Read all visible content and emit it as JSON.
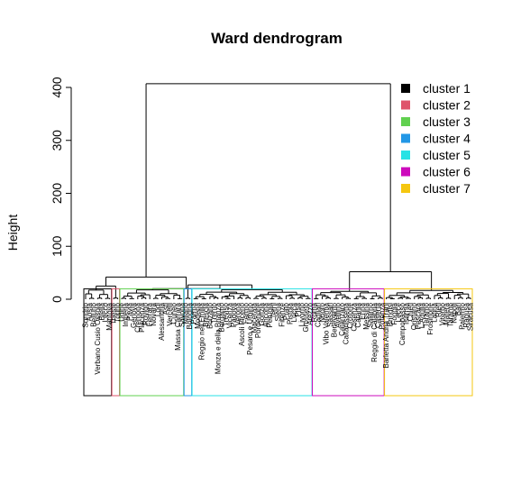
{
  "chart_data": {
    "type": "dendrogram",
    "title": "Ward dendrogram",
    "xlabel": "",
    "ylabel": "Height",
    "ylim": [
      0,
      420
    ],
    "yticks": [
      0,
      100,
      200,
      300,
      400
    ],
    "merges": [
      {
        "name": "root",
        "height": 407
      },
      {
        "name": "left-group",
        "height": 42
      },
      {
        "name": "right-group",
        "height": 52
      },
      {
        "name": "left-a",
        "height": 25
      },
      {
        "name": "left-b",
        "height": 27
      },
      {
        "name": "cluster-1-top",
        "height": 18
      },
      {
        "name": "cluster-3-top",
        "height": 18
      },
      {
        "name": "cluster-6-top",
        "height": 16
      },
      {
        "name": "cluster-7-top",
        "height": 17
      }
    ],
    "clusters": [
      {
        "name": "cluster 1",
        "color": "#000000",
        "leaves": [
          "Sondrio",
          "Aosta",
          "Belluno",
          "Verbano Cusio Ossola",
          "Biella",
          "Lecco",
          "Mantova"
        ]
      },
      {
        "name": "cluster 2",
        "color": "#DF536B",
        "leaves": [
          "Trieste",
          "Torino"
        ]
      },
      {
        "name": "cluster 3",
        "color": "#61D04F",
        "leaves": [
          "Udine",
          "Imperia",
          "Pavia",
          "Genova",
          "Cremona",
          "Piacenza",
          "Rovigo",
          "Ferrara",
          "Novara",
          "Lodi",
          "Alessandria",
          "Asti",
          "Vercelli",
          "Cuneo",
          "Massa Carrara",
          "Savona"
        ]
      },
      {
        "name": "cluster 4",
        "color": "#2297E6",
        "leaves": [
          "Milano",
          "Bologna"
        ]
      },
      {
        "name": "cluster 5",
        "color": "#28E2E5",
        "leaves": [
          "Parma",
          "Modena",
          "Reggio nell'Emilia",
          "Brescia",
          "Bolzano",
          "Trento",
          "Monza e della Brianza",
          "Bergamo",
          "Treviso",
          "Vicenza",
          "Padova",
          "Verona",
          "Ascoli Piceno",
          "Fermo",
          "Pesaro e Urbino",
          "Macerata",
          "Pordenone",
          "Gorizia",
          "Ancona",
          "Perugia",
          "Terni",
          "Siena",
          "Firenze",
          "Prato",
          "Pistoia",
          "Lucca",
          "Pisa",
          "Livorno",
          "Grosseto",
          "Arezzo"
        ]
      },
      {
        "name": "cluster 6",
        "color": "#CD0BBC",
        "leaves": [
          "Roma",
          "Cagliari",
          "Nuoro",
          "Vibo Valentia",
          "Sassari",
          "Benevento",
          "Avellino",
          "Catanzaro",
          "Caltanissetta",
          "Crotone",
          "Cosenza",
          "Catania",
          "Enna",
          "Messina",
          "Salerno",
          "Reggio di Calabria",
          "Caserta",
          "Potenza"
        ]
      },
      {
        "name": "cluster 7",
        "color": "#F5C710",
        "leaves": [
          "Barletta Andria Trani",
          "Brindisi",
          "Foggia",
          "Lecce",
          "Campobasso",
          "Isernia",
          "Chieti",
          "Oristano",
          "Pescara",
          "L'Aquila",
          "Teramo",
          "Frosinone",
          "Latina",
          "Rieti",
          "Viterbo",
          "Matera",
          "Taranto",
          "Napoli",
          "Bari",
          "Palermo",
          "Ragusa",
          "Siracusa"
        ]
      }
    ],
    "legend": {
      "position": "top-right",
      "entries": [
        "cluster 1",
        "cluster 2",
        "cluster 3",
        "cluster 4",
        "cluster 5",
        "cluster 6",
        "cluster 7"
      ]
    }
  }
}
